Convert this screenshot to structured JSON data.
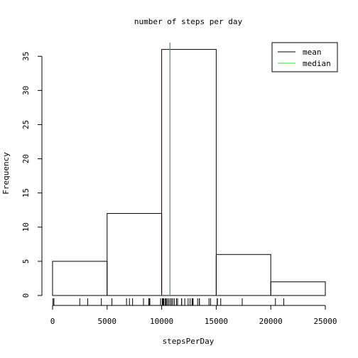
{
  "chart_data": {
    "type": "bar",
    "title": "number of steps per day",
    "xlabel": "stepsPerDay",
    "ylabel": "Frequency",
    "bins": [
      {
        "start": 0,
        "end": 5000,
        "count": 5
      },
      {
        "start": 5000,
        "end": 10000,
        "count": 12
      },
      {
        "start": 10000,
        "end": 15000,
        "count": 36
      },
      {
        "start": 15000,
        "end": 20000,
        "count": 6
      },
      {
        "start": 20000,
        "end": 25000,
        "count": 2
      }
    ],
    "xlim": [
      0,
      25000
    ],
    "ylim": [
      0,
      37
    ],
    "xticks": [
      0,
      5000,
      10000,
      15000,
      20000,
      25000
    ],
    "yticks": [
      0,
      5,
      10,
      15,
      20,
      25,
      30,
      35
    ],
    "rug": [
      41,
      126,
      2492,
      3219,
      4472,
      5441,
      6778,
      7047,
      7336,
      8334,
      8821,
      8841,
      8918,
      9900,
      10056,
      10119,
      10139,
      10183,
      10304,
      10395,
      10439,
      10571,
      10600,
      10765,
      10766,
      10900,
      11015,
      11162,
      11352,
      11458,
      11829,
      11834,
      12116,
      12426,
      12608,
      12787,
      12811,
      12883,
      13294,
      13452,
      13460,
      14339,
      14478,
      15084,
      15110,
      15414,
      17382,
      20427,
      21194
    ],
    "lines": [
      {
        "name": "mean",
        "value": 10766,
        "color": "#000000"
      },
      {
        "name": "median",
        "value": 10765,
        "color": "#3fd23f"
      }
    ],
    "legend_position": "top-right"
  }
}
